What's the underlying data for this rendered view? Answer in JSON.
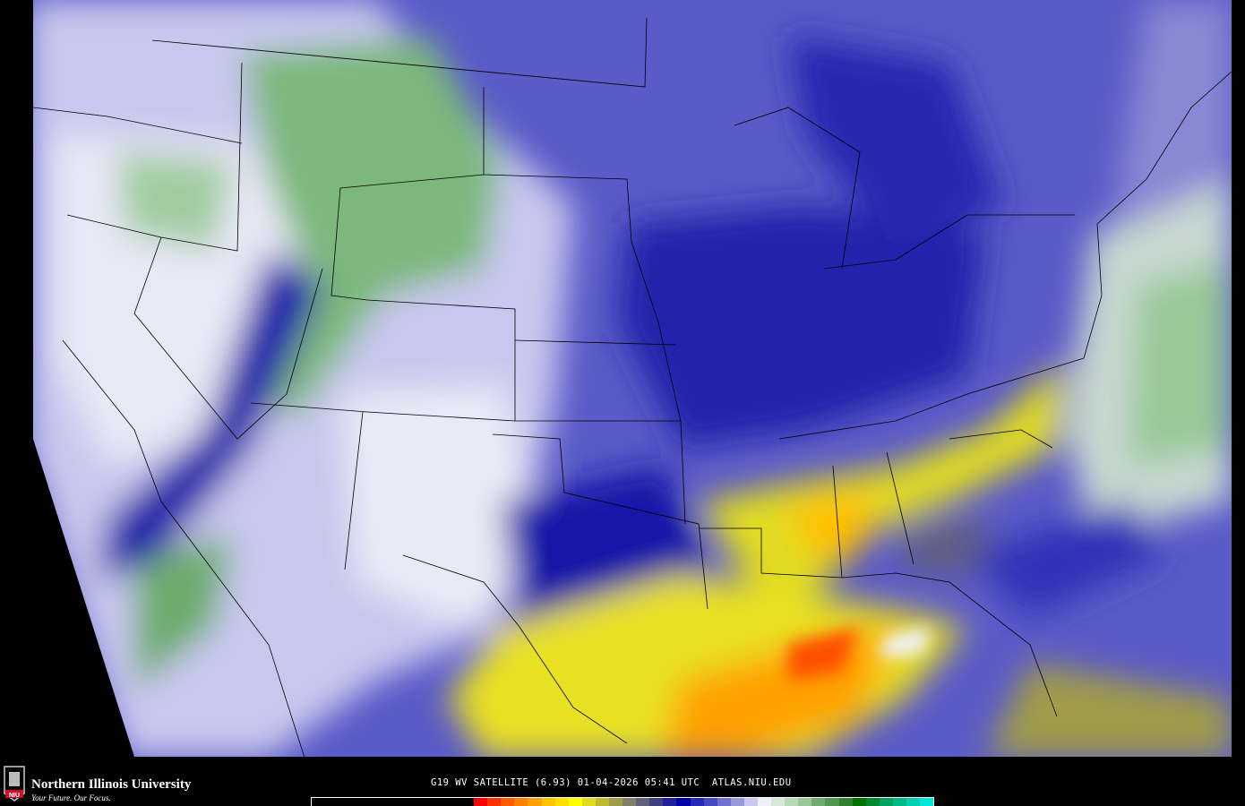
{
  "map": {
    "product": "G19 WV SATELLITE (6.93)",
    "date": "01-04-2026",
    "time": "05:41 UTC",
    "site": "ATLAS.NIU.EDU"
  },
  "branding": {
    "name": "Northern Illinois University",
    "tagline": "Your Future. Our Focus.",
    "seal_text": "NIU"
  },
  "colorbar": {
    "colors": [
      "#000000",
      "#ff0000",
      "#ff3000",
      "#ff5a00",
      "#ff8000",
      "#ffa000",
      "#ffc400",
      "#ffe000",
      "#ffff00",
      "#e0dc20",
      "#c0b830",
      "#a09c48",
      "#808068",
      "#606078",
      "#404080",
      "#20209a",
      "#0000a8",
      "#2828b8",
      "#4848c0",
      "#7070d0",
      "#9898dc",
      "#c8c8ee",
      "#f0f0f8",
      "#d8e8d8",
      "#b8d8b8",
      "#98c898",
      "#70ac70",
      "#509850",
      "#308030",
      "#007000",
      "#008830",
      "#00a060",
      "#00b888",
      "#00d0b0",
      "#00e8d8"
    ]
  },
  "colors": {
    "moist_low": "#3a3ab8",
    "dry": "#ffff00",
    "very_dry": "#ff5000",
    "cold_clouds": "#408840",
    "mid": "#c8c8ee"
  }
}
